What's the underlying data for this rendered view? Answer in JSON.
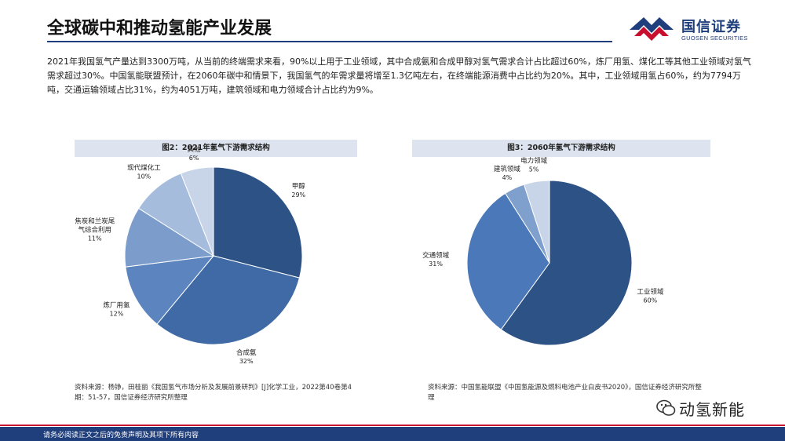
{
  "header": {
    "title": "全球碳中和推动氢能产业发展",
    "logo_cn": "国信证券",
    "logo_en": "GUOSEN SECURITIES"
  },
  "intro": "2021年我国氢气产量达到3300万吨，从当前的终端需求来看，90%以上用于工业领域，其中合成氨和合成甲醇对氢气需求合计占比超过60%，炼厂用氢、煤化工等其他工业领域对氢气需求超过30%。中国氢能联盟预计，在2060年碳中和情景下，我国氢气的年需求量将增至1.3亿吨左右，在终端能源消费中占比约为20%。其中，工业领域用氢占60%，约为7794万吨，交通运输领域占比31%，约为4051万吨，建筑领域和电力领域合计占比约为9%。",
  "chart1": {
    "header": "图2：2021年氢气下游需求结构",
    "source": "资料来源：杨铮，田桂丽《我国氢气市场分析及发展前景研判》[J]化学工业，2022第40卷第4期：51-57，国信证券经济研究所整理"
  },
  "chart2": {
    "header": "图3：2060年氢气下游需求结构",
    "source": "资料来源：中国氢能联盟《中国氢能源及燃料电池产业白皮书2020》，国信证券经济研究所整理"
  },
  "chart_data": [
    {
      "type": "pie",
      "title": "图2：2021年氢气下游需求结构",
      "categories": [
        "甲醇",
        "合成氨",
        "炼厂用氢",
        "焦炭和兰炭尾气综合利用",
        "现代煤化工",
        "其他"
      ],
      "display_labels": [
        [
          "甲醇"
        ],
        [
          "合成氨"
        ],
        [
          "炼厂用氢"
        ],
        [
          "焦炭和兰炭尾",
          "气综合利用"
        ],
        [
          "现代煤化工"
        ],
        [
          "其他"
        ]
      ],
      "values": [
        29,
        32,
        12,
        11,
        10,
        6
      ],
      "value_labels": [
        "29%",
        "32%",
        "12%",
        "11%",
        "10%",
        "6%"
      ],
      "colors": [
        "#2d5286",
        "#3f6aa6",
        "#5c85bf",
        "#7c9dcb",
        "#a5bcdd",
        "#c8d5e8"
      ]
    },
    {
      "type": "pie",
      "title": "图3：2060年氢气下游需求结构",
      "categories": [
        "工业领域",
        "交通领域",
        "建筑领域",
        "电力领域"
      ],
      "display_labels": [
        [
          "工业领域"
        ],
        [
          "交通领域"
        ],
        [
          "建筑领域"
        ],
        [
          "电力领域"
        ]
      ],
      "values": [
        60,
        31,
        4,
        5
      ],
      "value_labels": [
        "60%",
        "31%",
        "4%",
        "5%"
      ],
      "colors": [
        "#2d5286",
        "#4a78b8",
        "#7f9fcc",
        "#c8d5e8"
      ]
    }
  ],
  "watermark": "动氢新能",
  "footer": "请务必阅读正文之后的免责声明及其项下所有内容"
}
